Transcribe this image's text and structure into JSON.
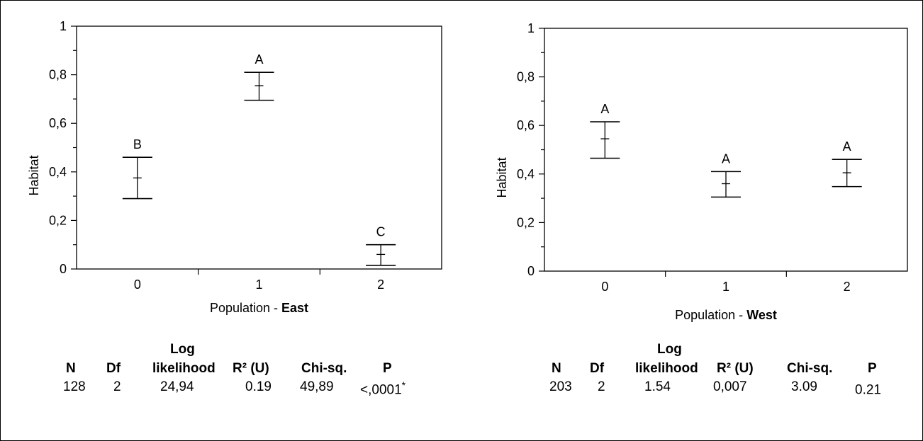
{
  "chart_data": [
    {
      "type": "error-bar",
      "xlabel_prefix": "Population - ",
      "xlabel_bold": "East",
      "ylabel": "Habitat",
      "ylim": [
        0,
        1
      ],
      "yticks": [
        "0",
        "0,2",
        "0,4",
        "0,6",
        "0,8",
        "1"
      ],
      "categories": [
        "0",
        "1",
        "2"
      ],
      "points": [
        {
          "x": "0",
          "mean": 0.375,
          "lower": 0.29,
          "upper": 0.46,
          "group": "B"
        },
        {
          "x": "1",
          "mean": 0.755,
          "lower": 0.695,
          "upper": 0.81,
          "group": "A"
        },
        {
          "x": "2",
          "mean": 0.06,
          "lower": 0.015,
          "upper": 0.1,
          "group": "C"
        }
      ],
      "stats": {
        "headers": {
          "n": "N",
          "df": "Df",
          "ll_top": "Log",
          "ll": "likelihood",
          "r2": "R² (U)",
          "chi": "Chi-sq.",
          "p": "P"
        },
        "values": {
          "n": "128",
          "df": "2",
          "ll": "24,94",
          "r2": "0.19",
          "chi": "49,89",
          "p": "<,0001",
          "sig": "*"
        }
      }
    },
    {
      "type": "error-bar",
      "xlabel_prefix": "Population - ",
      "xlabel_bold": "West",
      "ylabel": "Habitat",
      "ylim": [
        0,
        1
      ],
      "yticks": [
        "0",
        "0,2",
        "0,4",
        "0,6",
        "0,8",
        "1"
      ],
      "categories": [
        "0",
        "1",
        "2"
      ],
      "points": [
        {
          "x": "0",
          "mean": 0.545,
          "lower": 0.465,
          "upper": 0.615,
          "group": "A"
        },
        {
          "x": "1",
          "mean": 0.36,
          "lower": 0.305,
          "upper": 0.41,
          "group": "A"
        },
        {
          "x": "2",
          "mean": 0.405,
          "lower": 0.348,
          "upper": 0.46,
          "group": "A"
        }
      ],
      "stats": {
        "headers": {
          "n": "N",
          "df": "Df",
          "ll_top": "Log",
          "ll": "likelihood",
          "r2": "R² (U)",
          "chi": "Chi-sq.",
          "p": "P"
        },
        "values": {
          "n": "203",
          "df": "2",
          "ll": "1.54",
          "r2": "0,007",
          "chi": "3.09",
          "p": "0.21",
          "sig": ""
        }
      }
    }
  ]
}
